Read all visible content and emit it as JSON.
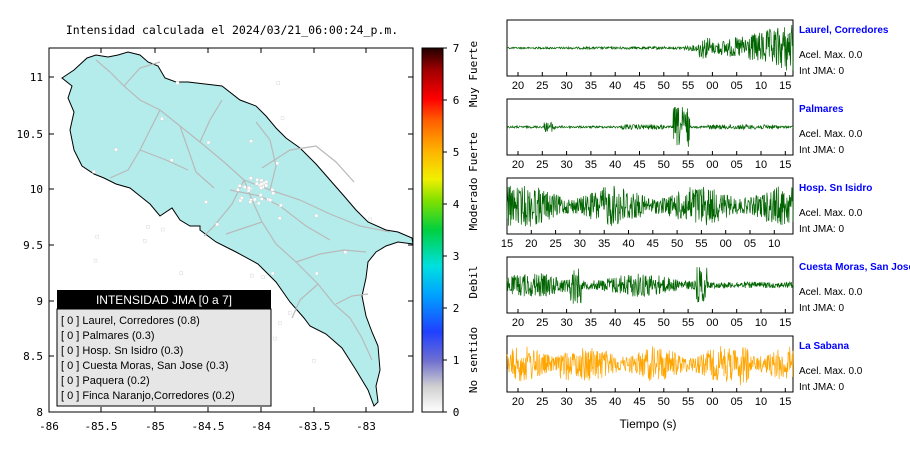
{
  "map": {
    "title": "Intensidad calculada el 2024/03/21_06:00:24_p.m.",
    "x_ticks": [
      "-86",
      "-85.5",
      "-85",
      "-84.5",
      "-84",
      "-83.5",
      "-83"
    ],
    "y_ticks": [
      "11",
      "10.5",
      "10",
      "9.5",
      "9",
      "8.5",
      "8"
    ],
    "land_color": "#b4ecec",
    "roads_color": "#b9b9b9"
  },
  "colorbar": {
    "ticks": [
      "7",
      "6",
      "5",
      "4",
      "3",
      "2",
      "1",
      "0"
    ],
    "labels": [
      "Muy Fuerte",
      "Fuerte",
      "Moderado",
      "Debil",
      "No sentido"
    ]
  },
  "legend": {
    "title": "INTENSIDAD JMA [0 a 7]",
    "rows": [
      "[ 0 ]  Laurel, Corredores (0.8)",
      "[ 0 ]  Palmares (0.3)",
      "[ 0 ]  Hosp. Sn Isidro (0.3)",
      "[ 0 ]  Cuesta Moras, San Jose (0.3)",
      "[ 0 ]  Paquera (0.2)",
      "[ 0 ]  Finca Naranjo,Corredores (0.2)"
    ]
  },
  "traces": {
    "xlabel": "Tiempo (s)",
    "panels": [
      {
        "station": "Laurel, Corredores",
        "accel": "Acel. Max. 0.0",
        "int": "Int JMA: 0",
        "color": "#006400",
        "ticks": [
          "20",
          "25",
          "30",
          "35",
          "40",
          "45",
          "50",
          "55",
          "00",
          "05",
          "10",
          "15"
        ],
        "shape": "grow"
      },
      {
        "station": "Palmares",
        "accel": "Acel. Max. 0.0",
        "int": "Int JMA: 0",
        "color": "#006400",
        "ticks": [
          "20",
          "25",
          "30",
          "35",
          "40",
          "45",
          "50",
          "55",
          "00",
          "05",
          "10",
          "15"
        ],
        "shape": "spike"
      },
      {
        "station": "Hosp. Sn Isidro",
        "accel": "Acel. Max. 0.0",
        "int": "Int JMA: 0",
        "color": "#006400",
        "ticks": [
          "15",
          "20",
          "25",
          "30",
          "35",
          "40",
          "45",
          "50",
          "55",
          "00",
          "05",
          "10"
        ],
        "shape": "noisy"
      },
      {
        "station": "Cuesta Moras, San Jose",
        "accel": "Acel. Max. 0.0",
        "int": "Int JMA: 0",
        "color": "#006400",
        "ticks": [
          "20",
          "25",
          "30",
          "35",
          "40",
          "45",
          "50",
          "55",
          "00",
          "05",
          "10",
          "15"
        ],
        "shape": "medium"
      },
      {
        "station": "La Sabana",
        "accel": "Acel. Max. 0.0",
        "int": "Int JMA: 0",
        "color": "#ffa500",
        "ticks": [
          "20",
          "25",
          "30",
          "35",
          "40",
          "45",
          "50",
          "55",
          "00",
          "05",
          "10",
          "15"
        ],
        "shape": "orange"
      }
    ]
  },
  "chart_data": [
    {
      "type": "map",
      "title": "Intensidad calculada el 2024/03/21_06:00:24_p.m.",
      "xlim": [
        -86,
        -82.55
      ],
      "ylim": [
        8,
        11.35
      ],
      "x_ticks": [
        -86,
        -85.5,
        -85,
        -84.5,
        -84,
        -83.5,
        -83
      ],
      "y_ticks": [
        8,
        8.5,
        9,
        9.5,
        10,
        10.5,
        11
      ],
      "legend_placement": "bottom-left",
      "legend_title": "INTENSIDAD JMA [0 a 7]",
      "stations": [
        {
          "name": "Laurel, Corredores",
          "jma_class": 0,
          "intensity": 0.8
        },
        {
          "name": "Palmares",
          "jma_class": 0,
          "intensity": 0.3
        },
        {
          "name": "Hosp. Sn Isidro",
          "jma_class": 0,
          "intensity": 0.3
        },
        {
          "name": "Cuesta Moras, San Jose",
          "jma_class": 0,
          "intensity": 0.3
        },
        {
          "name": "Paquera",
          "jma_class": 0,
          "intensity": 0.2
        },
        {
          "name": "Finca Naranjo,Corredores",
          "jma_class": 0,
          "intensity": 0.2
        }
      ]
    },
    {
      "type": "heatmap",
      "orientation": "vertical-colorbar",
      "range": [
        0,
        7
      ],
      "ticks": [
        0,
        1,
        2,
        3,
        4,
        5,
        6,
        7
      ],
      "labels": [
        "No sentido",
        "Debil",
        "Moderado",
        "Fuerte",
        "Muy Fuerte"
      ]
    },
    {
      "type": "line",
      "xlabel": "Tiempo (s)",
      "series": [
        {
          "name": "Laurel, Corredores",
          "color": "#006400"
        },
        {
          "name": "Palmares",
          "color": "#006400"
        },
        {
          "name": "Hosp. Sn Isidro",
          "color": "#006400"
        },
        {
          "name": "Cuesta Moras, San Jose",
          "color": "#006400"
        },
        {
          "name": "La Sabana",
          "color": "#ffa500"
        }
      ]
    }
  ]
}
